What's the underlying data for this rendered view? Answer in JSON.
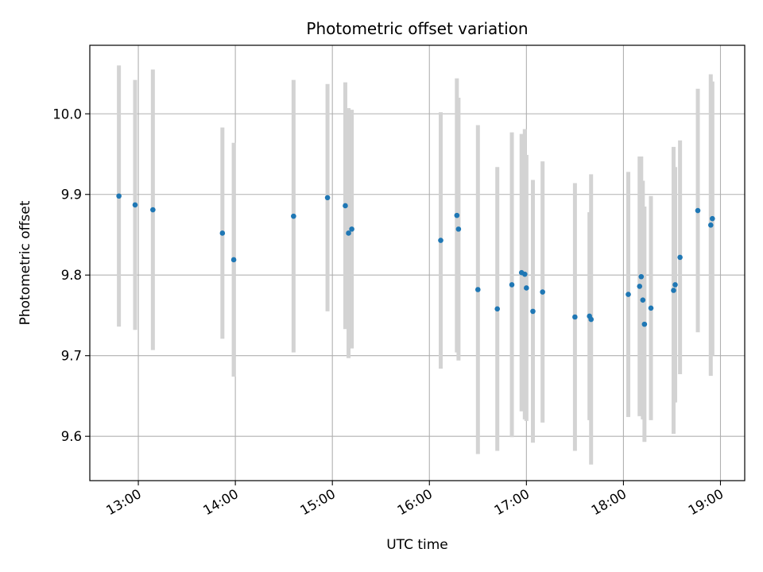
{
  "chart_data": {
    "type": "scatter",
    "title": "Photometric offset variation",
    "xlabel": "UTC time",
    "ylabel": "Photometric offset",
    "xlim": [
      "12:30",
      "19:15"
    ],
    "ylim": [
      9.545,
      10.085
    ],
    "x_ticks": [
      "13:00",
      "14:00",
      "15:00",
      "16:00",
      "17:00",
      "18:00",
      "19:00"
    ],
    "y_ticks": [
      "9.6",
      "9.7",
      "9.8",
      "9.9",
      "10.0"
    ],
    "grid": true,
    "legend": "none",
    "colors": {
      "point": "#1f77b4",
      "errorbar": "#d3d3d3",
      "grid": "#b0b0b0"
    },
    "points": [
      {
        "x": "12:48",
        "y": 9.898,
        "err": 0.162
      },
      {
        "x": "12:58",
        "y": 9.887,
        "err": 0.155
      },
      {
        "x": "13:09",
        "y": 9.881,
        "err": 0.174
      },
      {
        "x": "13:52",
        "y": 9.852,
        "err": 0.131
      },
      {
        "x": "13:59",
        "y": 9.819,
        "err": 0.145
      },
      {
        "x": "14:36",
        "y": 9.873,
        "err": 0.169
      },
      {
        "x": "14:57",
        "y": 9.896,
        "err": 0.141
      },
      {
        "x": "15:08",
        "y": 9.886,
        "err": 0.153
      },
      {
        "x": "15:10",
        "y": 9.852,
        "err": 0.155
      },
      {
        "x": "15:12",
        "y": 9.857,
        "err": 0.148
      },
      {
        "x": "16:07",
        "y": 9.843,
        "err": 0.159
      },
      {
        "x": "16:17",
        "y": 9.874,
        "err": 0.17
      },
      {
        "x": "16:18",
        "y": 9.857,
        "err": 0.163
      },
      {
        "x": "16:30",
        "y": 9.782,
        "err": 0.204
      },
      {
        "x": "16:42",
        "y": 9.758,
        "err": 0.176
      },
      {
        "x": "16:51",
        "y": 9.788,
        "err": 0.189
      },
      {
        "x": "16:57",
        "y": 9.803,
        "err": 0.172
      },
      {
        "x": "16:59",
        "y": 9.801,
        "err": 0.18
      },
      {
        "x": "17:00",
        "y": 9.784,
        "err": 0.165
      },
      {
        "x": "17:04",
        "y": 9.755,
        "err": 0.163
      },
      {
        "x": "17:10",
        "y": 9.779,
        "err": 0.162
      },
      {
        "x": "17:30",
        "y": 9.748,
        "err": 0.166
      },
      {
        "x": "17:39",
        "y": 9.749,
        "err": 0.129
      },
      {
        "x": "17:40",
        "y": 9.745,
        "err": 0.18
      },
      {
        "x": "18:03",
        "y": 9.776,
        "err": 0.152
      },
      {
        "x": "18:10",
        "y": 9.786,
        "err": 0.161
      },
      {
        "x": "18:11",
        "y": 9.798,
        "err": 0.149
      },
      {
        "x": "18:12",
        "y": 9.769,
        "err": 0.148
      },
      {
        "x": "18:13",
        "y": 9.739,
        "err": 0.146
      },
      {
        "x": "18:17",
        "y": 9.759,
        "err": 0.139
      },
      {
        "x": "18:31",
        "y": 9.781,
        "err": 0.178
      },
      {
        "x": "18:32",
        "y": 9.788,
        "err": 0.146
      },
      {
        "x": "18:35",
        "y": 9.822,
        "err": 0.145
      },
      {
        "x": "18:46",
        "y": 9.88,
        "err": 0.151
      },
      {
        "x": "18:54",
        "y": 9.862,
        "err": 0.187
      },
      {
        "x": "18:55",
        "y": 9.87,
        "err": 0.17
      }
    ]
  }
}
